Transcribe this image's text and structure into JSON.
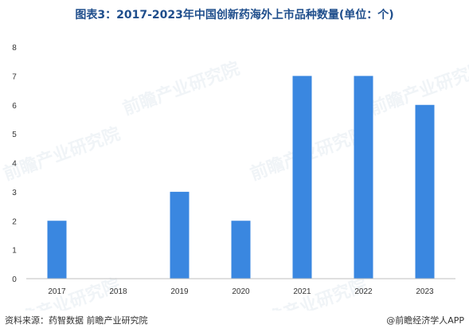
{
  "title": "图表3：2017-2023年中国创新药海外上市品种数量(单位：个)",
  "footer": {
    "source": "资料来源：药智数据 前瞻产业研究院",
    "brand": "@前瞻经济学人APP"
  },
  "watermark": "前瞻产业研究院",
  "colors": {
    "bar": "#3a87e0",
    "title": "#1f4e8c",
    "axis": "#bfbfbf"
  },
  "chart_data": {
    "type": "bar",
    "categories": [
      "2017",
      "2018",
      "2019",
      "2020",
      "2021",
      "2022",
      "2023"
    ],
    "values": [
      2,
      0,
      3,
      2,
      7,
      7,
      6
    ],
    "yticks": [
      0,
      1,
      2,
      3,
      4,
      5,
      6,
      7,
      8
    ],
    "ylim": [
      0,
      8
    ],
    "grid": false,
    "legend": "none"
  }
}
